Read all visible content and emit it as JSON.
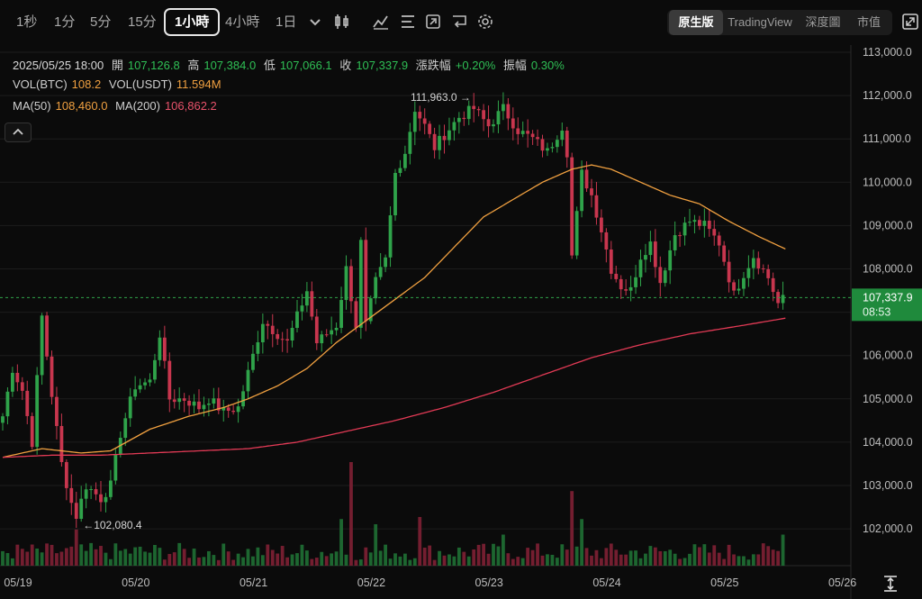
{
  "toolbar": {
    "intervals": [
      "1秒",
      "1分",
      "5分",
      "15分",
      "1小時",
      "4小時",
      "1日"
    ],
    "active_interval": "1小時",
    "view_modes": [
      "原生版",
      "TradingView",
      "深度圖",
      "市值"
    ],
    "active_view": "原生版",
    "icons": [
      "chevron-down-icon",
      "candle-type-icon",
      "indicator-icon",
      "settings-list-icon",
      "replay-icon",
      "undo-icon",
      "gear-icon"
    ]
  },
  "legend": {
    "datetime": "2025/05/25 18:00",
    "open_label": "開",
    "open": "107,126.8",
    "high_label": "高",
    "high": "107,384.0",
    "low_label": "低",
    "low": "107,066.1",
    "close_label": "收",
    "close": "107,337.9",
    "change_label": "漲跌幅",
    "change": "+0.20%",
    "amplitude_label": "振幅",
    "amplitude": "0.30%",
    "vol_btc_label": "VOL(BTC)",
    "vol_btc": "108.2",
    "vol_usdt_label": "VOL(USDT)",
    "vol_usdt": "11.594M",
    "ma50_label": "MA(50)",
    "ma50": "108,460.0",
    "ma200_label": "MA(200)",
    "ma200": "106,862.2"
  },
  "colors": {
    "up": "#2fa34a",
    "down": "#c8364e",
    "ma50": "#f0a040",
    "ma200": "#e23a55",
    "price_tag": "#1f8a3c",
    "grid": "#1c1c1c",
    "background": "#0b0b0b"
  },
  "chart_data": {
    "type": "candlestick",
    "interval": "1小時",
    "ylim": [
      101500,
      113000
    ],
    "y_ticks": [
      "113,000.0",
      "112,000.0",
      "111,000.0",
      "110,000.0",
      "109,000.0",
      "108,000.0",
      "107,000.0",
      "106,000.0",
      "105,000.0",
      "104,000.0",
      "103,000.0",
      "102,000.0"
    ],
    "x_ticks": [
      "05/19",
      "05/20",
      "05/21",
      "05/22",
      "05/23",
      "05/24",
      "05/25",
      "05/26"
    ],
    "x_tick_values": [
      0,
      24,
      48,
      72,
      96,
      120,
      144,
      168
    ],
    "current_price": "107,337.9",
    "countdown": "08:53",
    "annotations": [
      {
        "label": "111,963.0",
        "arrow": "→",
        "at_hour": 96.5,
        "value": 111963
      },
      {
        "label": "102,080.4",
        "arrow": "←",
        "at_hour": 16,
        "value": 102080.4
      }
    ],
    "close_anchors": [
      [
        0,
        104600
      ],
      [
        2,
        105700
      ],
      [
        4,
        105200
      ],
      [
        6,
        104000
      ],
      [
        8,
        106900
      ],
      [
        10,
        105100
      ],
      [
        12,
        103500
      ],
      [
        14,
        102600
      ],
      [
        15,
        102300
      ],
      [
        17,
        103000
      ],
      [
        20,
        102700
      ],
      [
        22,
        103000
      ],
      [
        24,
        104200
      ],
      [
        27,
        105300
      ],
      [
        30,
        105400
      ],
      [
        32,
        106500
      ],
      [
        34,
        105000
      ],
      [
        37,
        105000
      ],
      [
        40,
        104800
      ],
      [
        42,
        105000
      ],
      [
        45,
        104700
      ],
      [
        48,
        104800
      ],
      [
        51,
        106000
      ],
      [
        53,
        106800
      ],
      [
        56,
        106500
      ],
      [
        58,
        106300
      ],
      [
        60,
        106900
      ],
      [
        62,
        107500
      ],
      [
        64,
        106300
      ],
      [
        68,
        106700
      ],
      [
        70,
        108000
      ],
      [
        72,
        106700
      ],
      [
        73,
        108600
      ],
      [
        74,
        106700
      ],
      [
        76,
        107700
      ],
      [
        78,
        108200
      ],
      [
        80,
        110200
      ],
      [
        82,
        110700
      ],
      [
        84,
        111700
      ],
      [
        86,
        111300
      ],
      [
        88,
        110800
      ],
      [
        90,
        111100
      ],
      [
        93,
        111500
      ],
      [
        96,
        111700
      ],
      [
        99,
        111300
      ],
      [
        102,
        111700
      ],
      [
        105,
        111200
      ],
      [
        108,
        111000
      ],
      [
        111,
        110700
      ],
      [
        114,
        111300
      ],
      [
        115,
        110700
      ],
      [
        116,
        108300
      ],
      [
        118,
        110200
      ],
      [
        120,
        109700
      ],
      [
        122,
        108900
      ],
      [
        124,
        108000
      ],
      [
        126,
        107600
      ],
      [
        128,
        107500
      ],
      [
        130,
        108300
      ],
      [
        132,
        108600
      ],
      [
        134,
        107700
      ],
      [
        137,
        108800
      ],
      [
        140,
        109100
      ],
      [
        143,
        109000
      ],
      [
        146,
        108600
      ],
      [
        149,
        107400
      ],
      [
        151,
        107900
      ],
      [
        153,
        108300
      ],
      [
        156,
        107800
      ],
      [
        158,
        107200
      ],
      [
        159.5,
        107340
      ]
    ],
    "ma50_anchors": [
      [
        0,
        103650
      ],
      [
        8,
        103850
      ],
      [
        16,
        103750
      ],
      [
        22,
        103800
      ],
      [
        30,
        104300
      ],
      [
        38,
        104600
      ],
      [
        45,
        104800
      ],
      [
        50,
        105000
      ],
      [
        56,
        105300
      ],
      [
        62,
        105700
      ],
      [
        68,
        106300
      ],
      [
        74,
        106800
      ],
      [
        80,
        107300
      ],
      [
        86,
        107800
      ],
      [
        92,
        108500
      ],
      [
        98,
        109200
      ],
      [
        104,
        109600
      ],
      [
        110,
        110000
      ],
      [
        116,
        110300
      ],
      [
        120,
        110400
      ],
      [
        124,
        110300
      ],
      [
        130,
        110000
      ],
      [
        136,
        109700
      ],
      [
        142,
        109500
      ],
      [
        148,
        109100
      ],
      [
        154,
        108750
      ],
      [
        159.5,
        108460
      ]
    ],
    "ma200_anchors": [
      [
        0,
        103650
      ],
      [
        10,
        103700
      ],
      [
        20,
        103700
      ],
      [
        30,
        103750
      ],
      [
        40,
        103800
      ],
      [
        50,
        103850
      ],
      [
        60,
        104000
      ],
      [
        70,
        104250
      ],
      [
        80,
        104500
      ],
      [
        90,
        104800
      ],
      [
        100,
        105150
      ],
      [
        110,
        105550
      ],
      [
        120,
        105950
      ],
      [
        130,
        106250
      ],
      [
        140,
        106500
      ],
      [
        150,
        106680
      ],
      [
        159.5,
        106862
      ]
    ],
    "volume_peaks": [
      {
        "hour": 70.5,
        "rel": 1.0
      },
      {
        "hour": 115.5,
        "rel": 0.72
      },
      {
        "hour": 69,
        "rel": 0.45
      },
      {
        "hour": 85,
        "rel": 0.47
      },
      {
        "hour": 118,
        "rel": 0.45
      },
      {
        "hour": 76,
        "rel": 0.4
      },
      {
        "hour": 159,
        "rel": 0.3
      },
      {
        "hour": 102,
        "rel": 0.3
      },
      {
        "hour": 15,
        "rel": 0.35
      }
    ]
  }
}
